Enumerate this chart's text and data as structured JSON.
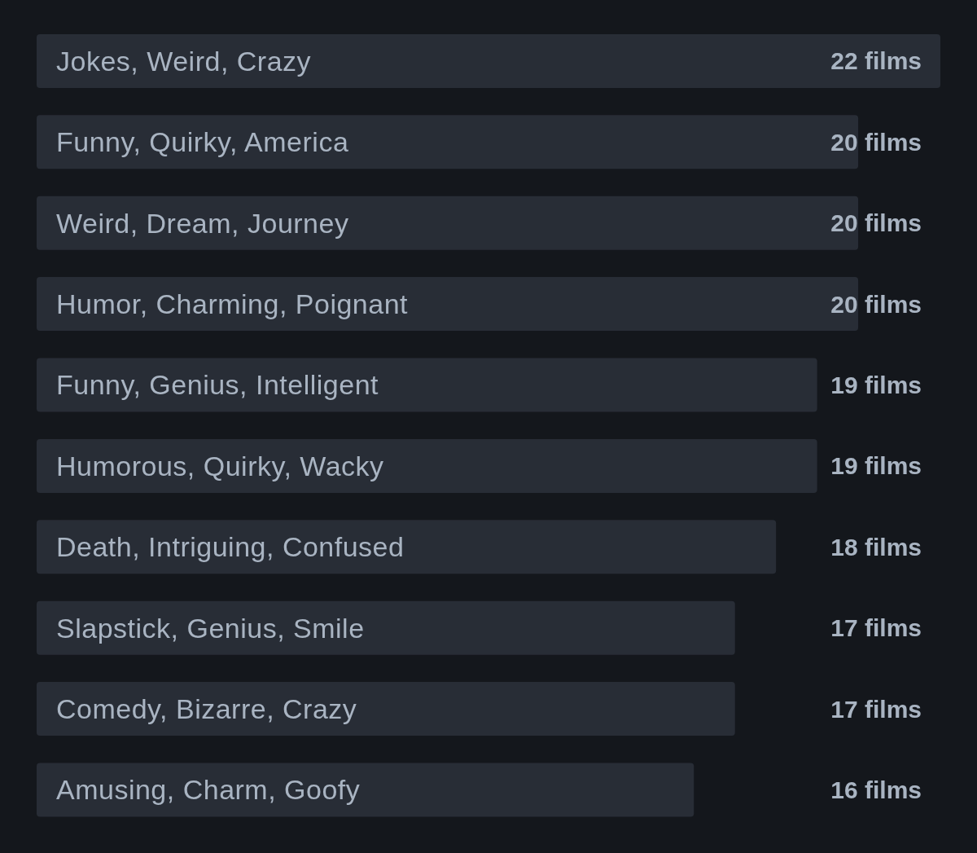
{
  "chart_data": {
    "type": "bar",
    "orientation": "horizontal",
    "categories": [
      "Jokes, Weird, Crazy",
      "Funny, Quirky, America",
      "Weird, Dream, Journey",
      "Humor, Charming, Poignant",
      "Funny, Genius, Intelligent",
      "Humorous, Quirky, Wacky",
      "Death, Intriguing, Confused",
      "Slapstick, Genius, Smile",
      "Comedy, Bizarre, Crazy",
      "Amusing, Charm, Goofy"
    ],
    "values": [
      22,
      20,
      20,
      20,
      19,
      19,
      18,
      17,
      17,
      16
    ],
    "value_labels": [
      "22 films",
      "20 films",
      "20 films",
      "20 films",
      "19 films",
      "19 films",
      "18 films",
      "17 films",
      "17 films",
      "16 films"
    ],
    "color": "#282d36",
    "xlim": [
      0,
      22
    ],
    "tick_labels": false,
    "grid": false,
    "legend": false
  }
}
